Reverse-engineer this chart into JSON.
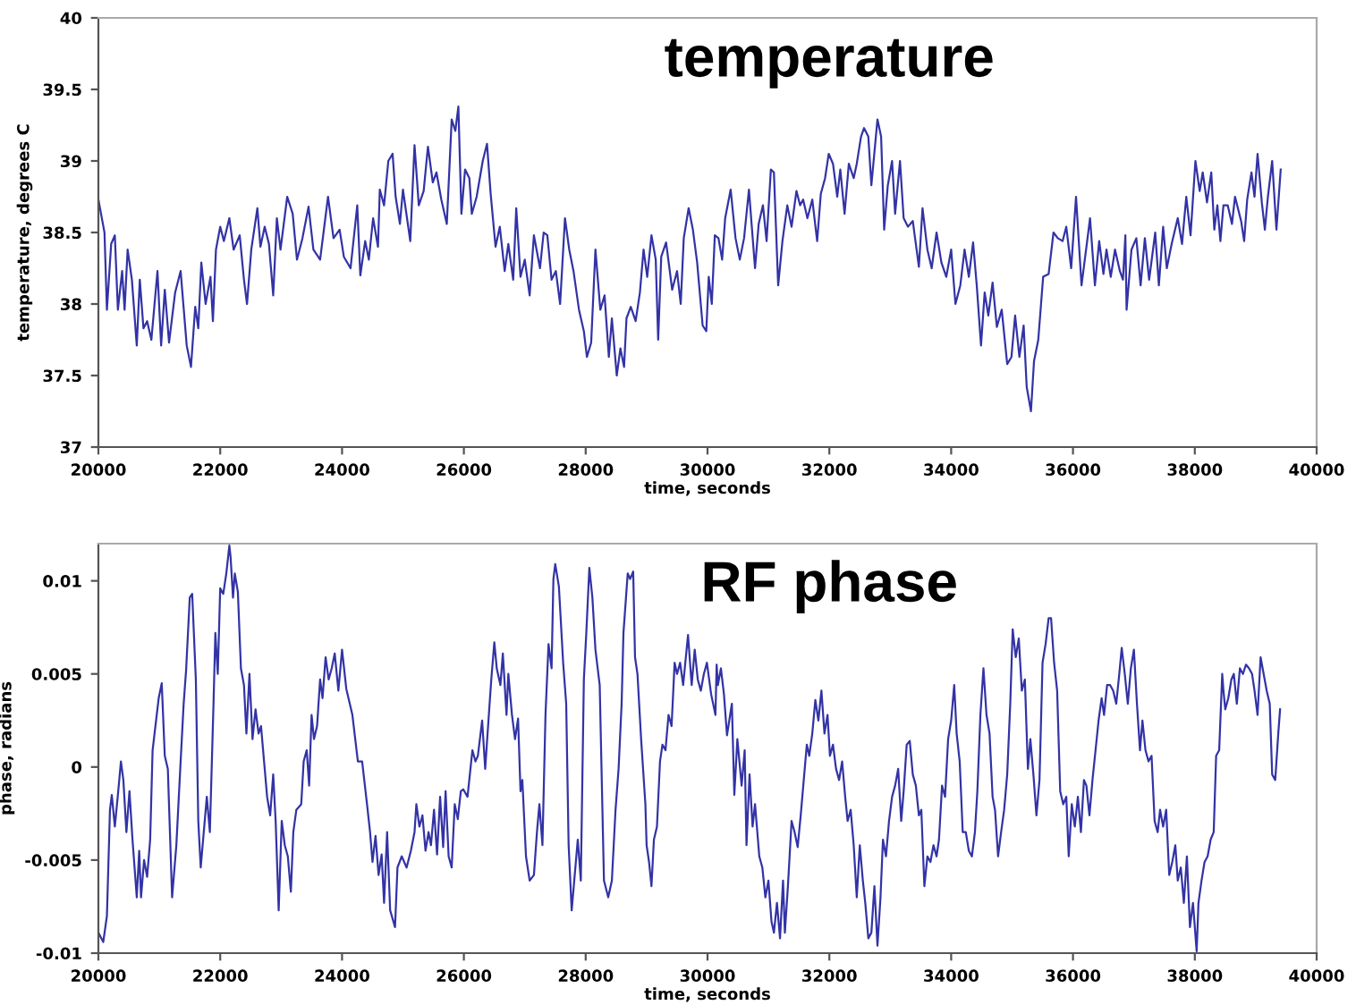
{
  "chart_data": [
    {
      "type": "line",
      "title": "temperature",
      "xlabel": "time, seconds",
      "ylabel": "temperature, degrees C",
      "color": "#3333a6",
      "grid": false,
      "legend": false,
      "marker": "none",
      "line_style": "solid",
      "xlim": [
        20000,
        40000
      ],
      "xticks": [
        20000,
        22000,
        24000,
        26000,
        28000,
        30000,
        32000,
        34000,
        36000,
        38000,
        40000
      ],
      "ylim": [
        37,
        40
      ],
      "yticks": [
        37,
        37.5,
        38,
        38.5,
        39,
        39.5,
        40
      ],
      "x": [
        20000,
        20100,
        20140,
        20210,
        20270,
        20320,
        20390,
        20430,
        20480,
        20550,
        20630,
        20680,
        20740,
        20800,
        20870,
        20970,
        21030,
        21090,
        21160,
        21260,
        21350,
        21450,
        21520,
        21590,
        21640,
        21690,
        21760,
        21840,
        21880,
        21930,
        22000,
        22060,
        22150,
        22220,
        22320,
        22390,
        22440,
        22510,
        22610,
        22660,
        22730,
        22800,
        22870,
        22930,
        22990,
        23100,
        23190,
        23260,
        23350,
        23450,
        23530,
        23640,
        23770,
        23860,
        23960,
        24030,
        24140,
        24250,
        24300,
        24380,
        24440,
        24510,
        24590,
        24620,
        24690,
        24760,
        24830,
        24880,
        24950,
        25000,
        25120,
        25190,
        25260,
        25340,
        25410,
        25490,
        25550,
        25630,
        25720,
        25800,
        25860,
        25910,
        25960,
        26020,
        26090,
        26130,
        26210,
        26310,
        26380,
        26440,
        26520,
        26590,
        26670,
        26730,
        26810,
        26860,
        26930,
        27000,
        27080,
        27150,
        27250,
        27310,
        27370,
        27440,
        27510,
        27580,
        27660,
        27730,
        27800,
        27890,
        27970,
        28020,
        28090,
        28160,
        28240,
        28310,
        28380,
        28430,
        28510,
        28570,
        28630,
        28670,
        28740,
        28820,
        28890,
        28950,
        29010,
        29080,
        29150,
        29190,
        29240,
        29320,
        29420,
        29500,
        29560,
        29610,
        29690,
        29760,
        29830,
        29920,
        29980,
        30020,
        30070,
        30120,
        30180,
        30240,
        30290,
        30380,
        30460,
        30530,
        30600,
        30680,
        30780,
        30840,
        30910,
        30970,
        31040,
        31090,
        31160,
        31230,
        31310,
        31380,
        31460,
        31520,
        31570,
        31640,
        31720,
        31800,
        31860,
        31930,
        31990,
        32060,
        32130,
        32180,
        32250,
        32320,
        32400,
        32450,
        32520,
        32570,
        32640,
        32690,
        32790,
        32850,
        32900,
        32960,
        33030,
        33080,
        33160,
        33220,
        33290,
        33370,
        33470,
        33530,
        33610,
        33680,
        33760,
        33840,
        33920,
        34000,
        34070,
        34150,
        34220,
        34290,
        34360,
        34420,
        34490,
        34550,
        34610,
        34680,
        34750,
        34830,
        34920,
        34990,
        35050,
        35120,
        35190,
        35240,
        35310,
        35360,
        35430,
        35510,
        35600,
        35680,
        35750,
        35830,
        35890,
        35970,
        36050,
        36140,
        36200,
        36280,
        36360,
        36430,
        36500,
        36550,
        36620,
        36690,
        36770,
        36820,
        36860,
        36880,
        36960,
        37040,
        37110,
        37180,
        37250,
        37350,
        37410,
        37480,
        37540,
        37620,
        37720,
        37790,
        37860,
        37930,
        38010,
        38080,
        38130,
        38200,
        38270,
        38320,
        38370,
        38420,
        38470,
        38540,
        38610,
        38660,
        38760,
        38810,
        38860,
        38930,
        38980,
        39030,
        39100,
        39150,
        39200,
        39270,
        39340,
        39410
      ],
      "values": [
        38.73,
        38.5,
        37.96,
        38.42,
        38.48,
        37.96,
        38.23,
        37.96,
        38.38,
        38.17,
        37.71,
        38.17,
        37.83,
        37.88,
        37.75,
        38.23,
        37.71,
        38.1,
        37.73,
        38.08,
        38.23,
        37.71,
        37.56,
        37.98,
        37.83,
        38.29,
        38.0,
        38.19,
        37.88,
        38.38,
        38.54,
        38.44,
        38.6,
        38.38,
        38.48,
        38.17,
        38.0,
        38.38,
        38.67,
        38.4,
        38.54,
        38.42,
        38.06,
        38.6,
        38.38,
        38.75,
        38.63,
        38.31,
        38.46,
        38.68,
        38.38,
        38.31,
        38.75,
        38.46,
        38.52,
        38.33,
        38.25,
        38.69,
        38.2,
        38.44,
        38.31,
        38.6,
        38.4,
        38.8,
        38.69,
        39.0,
        39.05,
        38.75,
        38.56,
        38.8,
        38.44,
        39.11,
        38.69,
        38.79,
        39.1,
        38.85,
        38.92,
        38.73,
        38.56,
        39.29,
        39.21,
        39.38,
        38.63,
        38.94,
        38.88,
        38.63,
        38.75,
        39.0,
        39.12,
        38.77,
        38.4,
        38.54,
        38.23,
        38.42,
        38.17,
        38.67,
        38.19,
        38.31,
        38.06,
        38.48,
        38.25,
        38.5,
        38.48,
        38.17,
        38.23,
        38.0,
        38.6,
        38.38,
        38.23,
        37.96,
        37.81,
        37.63,
        37.73,
        38.38,
        37.96,
        38.06,
        37.63,
        37.9,
        37.5,
        37.69,
        37.56,
        37.9,
        37.98,
        37.88,
        38.08,
        38.38,
        38.19,
        38.48,
        38.31,
        37.75,
        38.33,
        38.43,
        38.1,
        38.23,
        38.0,
        38.46,
        38.67,
        38.52,
        38.29,
        37.85,
        37.81,
        38.19,
        38.0,
        38.48,
        38.46,
        38.31,
        38.6,
        38.8,
        38.46,
        38.31,
        38.46,
        38.8,
        38.25,
        38.56,
        38.69,
        38.44,
        38.94,
        38.92,
        38.13,
        38.44,
        38.69,
        38.54,
        38.79,
        38.69,
        38.73,
        38.6,
        38.73,
        38.44,
        38.77,
        38.88,
        39.05,
        38.98,
        38.75,
        38.94,
        38.63,
        38.98,
        38.88,
        38.98,
        39.17,
        39.23,
        39.17,
        38.83,
        39.29,
        39.17,
        38.52,
        38.83,
        39.0,
        38.63,
        39.0,
        38.6,
        38.54,
        38.58,
        38.26,
        38.67,
        38.38,
        38.25,
        38.5,
        38.29,
        38.19,
        38.38,
        38.0,
        38.13,
        38.38,
        38.19,
        38.43,
        38.13,
        37.71,
        38.08,
        37.92,
        38.15,
        37.84,
        37.96,
        37.58,
        37.63,
        37.92,
        37.63,
        37.85,
        37.42,
        37.25,
        37.6,
        37.75,
        38.19,
        38.21,
        38.5,
        38.46,
        38.44,
        38.54,
        38.25,
        38.75,
        38.13,
        38.33,
        38.6,
        38.13,
        38.44,
        38.21,
        38.38,
        38.19,
        38.38,
        38.23,
        38.17,
        38.48,
        37.96,
        38.38,
        38.46,
        38.13,
        38.46,
        38.17,
        38.5,
        38.13,
        38.54,
        38.25,
        38.42,
        38.6,
        38.42,
        38.75,
        38.48,
        39.0,
        38.79,
        38.92,
        38.71,
        38.92,
        38.52,
        38.69,
        38.44,
        38.69,
        38.69,
        38.56,
        38.75,
        38.58,
        38.44,
        38.73,
        38.92,
        38.75,
        39.05,
        38.71,
        38.52,
        38.75,
        39.0,
        38.52,
        38.94
      ]
    },
    {
      "type": "line",
      "title": "RF phase",
      "xlabel": "time, seconds",
      "ylabel": "phase, radians",
      "color": "#3333a6",
      "grid": false,
      "legend": false,
      "marker": "none",
      "line_style": "solid",
      "xlim": [
        20000,
        40000
      ],
      "xticks": [
        20000,
        22000,
        24000,
        26000,
        28000,
        30000,
        32000,
        34000,
        36000,
        38000,
        40000
      ],
      "ylim": [
        -0.01,
        0.012
      ],
      "yticks": [
        -0.01,
        -0.005,
        0,
        0.005,
        0.01
      ],
      "x": [
        20000,
        20080,
        20140,
        20190,
        20220,
        20270,
        20320,
        20370,
        20410,
        20460,
        20510,
        20560,
        20630,
        20670,
        20700,
        20750,
        20800,
        20850,
        20890,
        20940,
        20990,
        21040,
        21090,
        21140,
        21210,
        21280,
        21350,
        21400,
        21440,
        21500,
        21540,
        21600,
        21640,
        21680,
        21730,
        21780,
        21830,
        21890,
        21920,
        21960,
        22000,
        22050,
        22100,
        22150,
        22170,
        22210,
        22240,
        22290,
        22340,
        22390,
        22430,
        22480,
        22530,
        22580,
        22630,
        22670,
        22720,
        22770,
        22820,
        22870,
        22910,
        22960,
        23010,
        23060,
        23110,
        23160,
        23200,
        23250,
        23330,
        23370,
        23420,
        23460,
        23500,
        23540,
        23590,
        23640,
        23680,
        23730,
        23780,
        23830,
        23880,
        23940,
        24000,
        24070,
        24170,
        24260,
        24330,
        24410,
        24460,
        24500,
        24550,
        24600,
        24650,
        24690,
        24740,
        24790,
        24870,
        24910,
        24980,
        25060,
        25130,
        25190,
        25220,
        25270,
        25320,
        25370,
        25420,
        25460,
        25510,
        25560,
        25610,
        25660,
        25700,
        25750,
        25800,
        25850,
        25900,
        25950,
        25990,
        26060,
        26140,
        26190,
        26230,
        26300,
        26350,
        26410,
        26450,
        26500,
        26540,
        26600,
        26640,
        26700,
        26730,
        26790,
        26840,
        26890,
        26930,
        26960,
        27020,
        27080,
        27150,
        27200,
        27240,
        27290,
        27340,
        27390,
        27440,
        27470,
        27500,
        27560,
        27630,
        27680,
        27720,
        27770,
        27820,
        27870,
        27920,
        27970,
        28010,
        28060,
        28110,
        28160,
        28230,
        28300,
        28370,
        28430,
        28490,
        28540,
        28590,
        28620,
        28690,
        28730,
        28780,
        28810,
        28850,
        28910,
        28980,
        29000,
        29040,
        29080,
        29120,
        29170,
        29220,
        29260,
        29310,
        29360,
        29410,
        29460,
        29500,
        29550,
        29600,
        29680,
        29740,
        29790,
        29840,
        29890,
        29940,
        29990,
        30060,
        30130,
        30150,
        30170,
        30220,
        30270,
        30320,
        30400,
        30440,
        30490,
        30560,
        30610,
        30640,
        30690,
        30740,
        30780,
        30850,
        30900,
        30950,
        31000,
        31050,
        31090,
        31140,
        31190,
        31240,
        31270,
        31320,
        31380,
        31430,
        31480,
        31530,
        31580,
        31630,
        31670,
        31720,
        31770,
        31820,
        31870,
        31920,
        31970,
        32010,
        32060,
        32110,
        32160,
        32210,
        32260,
        32300,
        32350,
        32400,
        32450,
        32500,
        32550,
        32590,
        32640,
        32690,
        32740,
        32790,
        32840,
        32880,
        32930,
        32980,
        33030,
        33080,
        33130,
        33180,
        33220,
        33270,
        33320,
        33370,
        33420,
        33470,
        33510,
        33560,
        33610,
        33660,
        33710,
        33760,
        33800,
        33850,
        33900,
        33950,
        34000,
        34050,
        34090,
        34140,
        34190,
        34240,
        34290,
        34340,
        34390,
        34430,
        34480,
        34530,
        34580,
        34630,
        34680,
        34720,
        34770,
        34820,
        34870,
        34920,
        34970,
        35010,
        35060,
        35110,
        35160,
        35210,
        35260,
        35300,
        35350,
        35400,
        35450,
        35500,
        35550,
        35600,
        35640,
        35690,
        35740,
        35790,
        35840,
        35890,
        35930,
        35980,
        36030,
        36080,
        36130,
        36180,
        36220,
        36270,
        36320,
        36370,
        36420,
        36470,
        36510,
        36560,
        36610,
        36660,
        36710,
        36760,
        36800,
        36850,
        36900,
        36950,
        37000,
        37050,
        37100,
        37140,
        37190,
        37240,
        37290,
        37340,
        37390,
        37430,
        37480,
        37530,
        37580,
        37630,
        37680,
        37720,
        37770,
        37820,
        37870,
        37920,
        37970,
        38030,
        38060,
        38110,
        38160,
        38210,
        38260,
        38310,
        38350,
        38400,
        38450,
        38470,
        38500,
        38550,
        38600,
        38640,
        38690,
        38740,
        38790,
        38840,
        38890,
        38940,
        38980,
        39030,
        39080,
        39130,
        39180,
        39230,
        39270,
        39320,
        39370,
        39400
      ],
      "values": [
        -0.0089,
        -0.0094,
        -0.008,
        -0.0023,
        -0.0015,
        -0.0032,
        -0.0015,
        0.0003,
        -0.0007,
        -0.0035,
        -0.0013,
        -0.0039,
        -0.007,
        -0.0045,
        -0.007,
        -0.005,
        -0.0059,
        -0.0039,
        0.0009,
        0.0023,
        0.0037,
        0.0045,
        0.0006,
        -0.0001,
        -0.007,
        -0.0042,
        0.0003,
        0.0034,
        0.0052,
        0.0091,
        0.0093,
        0.0047,
        -0.0029,
        -0.0054,
        -0.0035,
        -0.0016,
        -0.0035,
        0.0034,
        0.0072,
        0.005,
        0.0096,
        0.0093,
        0.0104,
        0.0119,
        0.0113,
        0.0091,
        0.0104,
        0.0094,
        0.0053,
        0.0044,
        0.0018,
        0.005,
        0.0015,
        0.0031,
        0.0018,
        0.0022,
        0.0003,
        -0.0016,
        -0.0026,
        -0.0004,
        -0.0029,
        -0.0077,
        -0.0029,
        -0.0042,
        -0.0048,
        -0.0067,
        -0.0035,
        -0.0023,
        -0.002,
        0.0003,
        0.0009,
        -0.001,
        0.0028,
        0.0015,
        0.0022,
        0.0047,
        0.0037,
        0.0059,
        0.0047,
        0.0053,
        0.0061,
        0.0041,
        0.0063,
        0.0042,
        0.0028,
        0.0003,
        0.0003,
        -0.002,
        -0.0035,
        -0.0051,
        -0.0037,
        -0.0058,
        -0.0047,
        -0.0073,
        -0.0035,
        -0.0077,
        -0.0086,
        -0.0054,
        -0.0048,
        -0.0054,
        -0.0045,
        -0.0035,
        -0.002,
        -0.0032,
        -0.0026,
        -0.0045,
        -0.0035,
        -0.0042,
        -0.0023,
        -0.0047,
        -0.0016,
        -0.0043,
        -0.0013,
        -0.0048,
        -0.0054,
        -0.002,
        -0.0028,
        -0.0013,
        -0.0012,
        -0.0016,
        0.0009,
        0.0003,
        0.0006,
        0.0025,
        -0.0001,
        0.0028,
        0.0047,
        0.0067,
        0.0053,
        0.0044,
        0.0061,
        0.0028,
        0.005,
        0.0028,
        0.0015,
        0.0026,
        -0.0013,
        -0.0007,
        -0.0048,
        -0.0061,
        -0.0058,
        -0.0035,
        -0.002,
        -0.0042,
        0.0028,
        0.0066,
        0.0053,
        0.0101,
        0.0109,
        0.0097,
        0.0056,
        0.0034,
        -0.0042,
        -0.0077,
        -0.0058,
        -0.0039,
        -0.0061,
        0.0047,
        0.0072,
        0.0107,
        0.0091,
        0.0063,
        0.0044,
        -0.0061,
        -0.007,
        -0.0061,
        -0.0023,
        -0.0001,
        0.0034,
        0.0072,
        0.0104,
        0.0101,
        0.0105,
        0.0059,
        0.005,
        0.0015,
        -0.002,
        -0.0042,
        -0.0051,
        -0.0064,
        -0.0039,
        -0.0032,
        0.0003,
        0.0012,
        0.0009,
        0.0028,
        0.0022,
        0.0056,
        0.005,
        0.0056,
        0.0044,
        0.0071,
        0.0044,
        0.0063,
        0.0047,
        0.0041,
        0.005,
        0.0056,
        0.0039,
        0.0028,
        0.0055,
        0.0044,
        0.0053,
        0.0039,
        0.0017,
        0.0034,
        -0.0015,
        0.0015,
        -0.001,
        0.0009,
        -0.0042,
        -0.0004,
        -0.0032,
        -0.002,
        -0.0048,
        -0.0054,
        -0.007,
        -0.0061,
        -0.0083,
        -0.0089,
        -0.0073,
        -0.0092,
        -0.0061,
        -0.0089,
        -0.0064,
        -0.0029,
        -0.0035,
        -0.0043,
        -0.0026,
        -0.0007,
        0.0012,
        0.0006,
        0.0018,
        0.0036,
        0.0025,
        0.0041,
        0.0018,
        0.0028,
        0.0006,
        0.0012,
        -0.0001,
        -0.0007,
        0.0003,
        -0.0016,
        -0.0029,
        -0.0023,
        -0.0042,
        -0.007,
        -0.0042,
        -0.0061,
        -0.0073,
        -0.0092,
        -0.0089,
        -0.0064,
        -0.0096,
        -0.007,
        -0.0039,
        -0.0048,
        -0.0029,
        -0.0016,
        -0.001,
        -0.0001,
        -0.0029,
        -0.0013,
        0.0012,
        0.0014,
        -0.0004,
        -0.001,
        -0.0026,
        -0.0023,
        -0.0064,
        -0.0048,
        -0.0051,
        -0.0042,
        -0.0048,
        -0.0039,
        -0.001,
        -0.0016,
        0.0015,
        0.0025,
        0.0044,
        0.0018,
        0.0003,
        -0.0035,
        -0.0035,
        -0.0045,
        -0.0048,
        -0.0035,
        -0.0013,
        0.0028,
        0.0053,
        0.0028,
        0.0018,
        -0.0016,
        -0.0023,
        -0.0048,
        -0.0035,
        -0.0023,
        -0.0004,
        0.0034,
        0.0074,
        0.0059,
        0.0069,
        0.0041,
        0.0047,
        -0.0001,
        0.0015,
        -0.0004,
        -0.0026,
        -0.0007,
        0.0056,
        0.0066,
        0.008,
        0.008,
        0.0056,
        0.0041,
        -0.0013,
        -0.002,
        -0.0016,
        -0.0048,
        -0.002,
        -0.0032,
        -0.0016,
        -0.0035,
        -0.0007,
        -0.001,
        -0.0026,
        -0.0007,
        0.0009,
        0.0025,
        0.0037,
        0.0028,
        0.0044,
        0.0044,
        0.0041,
        0.0034,
        0.005,
        0.0064,
        0.005,
        0.0034,
        0.0053,
        0.0063,
        0.0034,
        0.0009,
        0.0025,
        0.0009,
        0.0003,
        0.0006,
        -0.0029,
        -0.0035,
        -0.0023,
        -0.0032,
        -0.0023,
        -0.0058,
        -0.0051,
        -0.0042,
        -0.0061,
        -0.0054,
        -0.0073,
        -0.0048,
        -0.0086,
        -0.0073,
        -0.0099,
        -0.0073,
        -0.0061,
        -0.0051,
        -0.0048,
        -0.0039,
        -0.0035,
        0.0006,
        0.0009,
        0.005,
        0.0041,
        0.0031,
        0.0037,
        0.0047,
        0.005,
        0.0034,
        0.0053,
        0.005,
        0.0055,
        0.0053,
        0.005,
        0.0041,
        0.0028,
        0.0059,
        0.005,
        0.0041,
        0.0034,
        -0.0004,
        -0.0007,
        0.0018,
        0.0031
      ]
    }
  ]
}
